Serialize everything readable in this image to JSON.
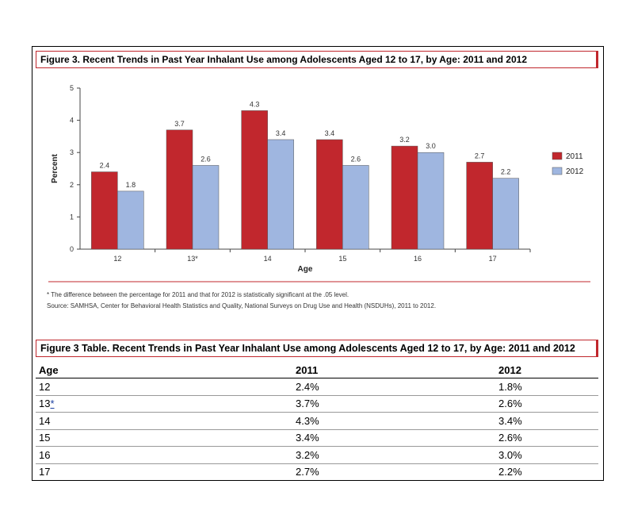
{
  "figure_title": "Figure 3. Recent Trends in Past Year Inhalant Use among Adolescents Aged 12 to 17, by Age: 2011 and 2012",
  "notes": {
    "footnote": "* The difference between the percentage for 2011 and that for 2012 is statistically significant at the .05 level.",
    "source": "Source: SAMHSA, Center for Behavioral Health Statistics and Quality, National Surveys on Drug Use and Health (NSDUHs), 2011 to 2012."
  },
  "chart_data": {
    "type": "bar",
    "title": "Figure 3. Recent Trends in Past Year Inhalant Use among Adolescents Aged 12 to 17, by Age: 2011 and 2012",
    "xlabel": "Age",
    "ylabel": "Percent",
    "ylim": [
      0,
      5
    ],
    "yticks": [
      "0",
      "1",
      "2",
      "3",
      "4",
      "5"
    ],
    "categories": [
      "12",
      "13*",
      "14",
      "15",
      "16",
      "17"
    ],
    "series": [
      {
        "name": "2011",
        "color": "#c1272d",
        "values": [
          2.4,
          3.7,
          4.3,
          3.4,
          3.2,
          2.7
        ],
        "labels": [
          "2.4",
          "3.7",
          "4.3",
          "3.4",
          "3.2",
          "2.7"
        ]
      },
      {
        "name": "2012",
        "color": "#9fb6e0",
        "values": [
          1.8,
          2.6,
          3.4,
          2.6,
          3.0,
          2.2
        ],
        "labels": [
          "1.8",
          "2.6",
          "3.4",
          "2.6",
          "3.0",
          "2.2"
        ]
      }
    ],
    "legend": "right",
    "grid": false
  },
  "table": {
    "title": "Figure 3 Table. Recent Trends in Past Year Inhalant Use among Adolescents Aged 12 to 17, by Age: 2011 and 2012",
    "headers": [
      "Age",
      "2011",
      "2012"
    ],
    "rows": [
      {
        "age": "12",
        "star": "",
        "v2011": "2.4%",
        "v2012": "1.8%"
      },
      {
        "age": "13",
        "star": "*",
        "v2011": "3.7%",
        "v2012": "2.6%"
      },
      {
        "age": "14",
        "star": "",
        "v2011": "4.3%",
        "v2012": "3.4%"
      },
      {
        "age": "15",
        "star": "",
        "v2011": "3.4%",
        "v2012": "2.6%"
      },
      {
        "age": "16",
        "star": "",
        "v2011": "3.2%",
        "v2012": "3.0%"
      },
      {
        "age": "17",
        "star": "",
        "v2011": "2.7%",
        "v2012": "2.2%"
      }
    ]
  }
}
